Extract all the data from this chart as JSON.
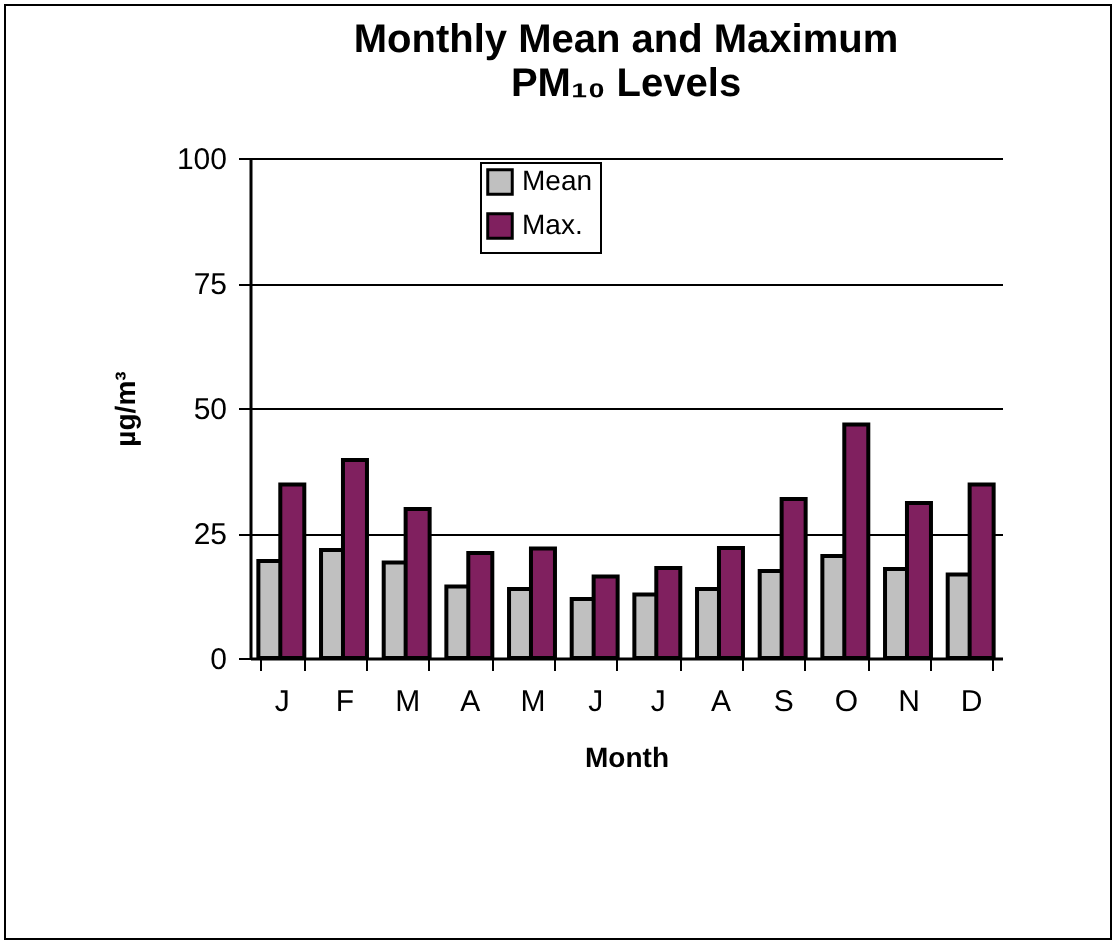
{
  "chart_data": {
    "type": "bar",
    "title": "Monthly Mean and Maximum\nPM₁₀ Levels",
    "xlabel": "Month",
    "ylabel": "µg/m³",
    "categories": [
      "J",
      "F",
      "M",
      "A",
      "M",
      "J",
      "J",
      "A",
      "S",
      "O",
      "N",
      "D"
    ],
    "series": [
      {
        "name": "Mean",
        "color": "#c0c0c0",
        "values": [
          19.4,
          21.6,
          19.1,
          14.3,
          13.8,
          11.8,
          12.7,
          13.8,
          17.4,
          20.4,
          17.8,
          16.7
        ]
      },
      {
        "name": "Max.",
        "color": "#80205f",
        "values": [
          34.7,
          39.6,
          29.8,
          21,
          21.9,
          16.3,
          18,
          22,
          31.8,
          46.7,
          31,
          34.7
        ]
      }
    ],
    "ylim": [
      0,
      100
    ],
    "yticks": [
      0,
      25,
      50,
      75,
      100
    ],
    "grid": "y",
    "legend": "top"
  }
}
